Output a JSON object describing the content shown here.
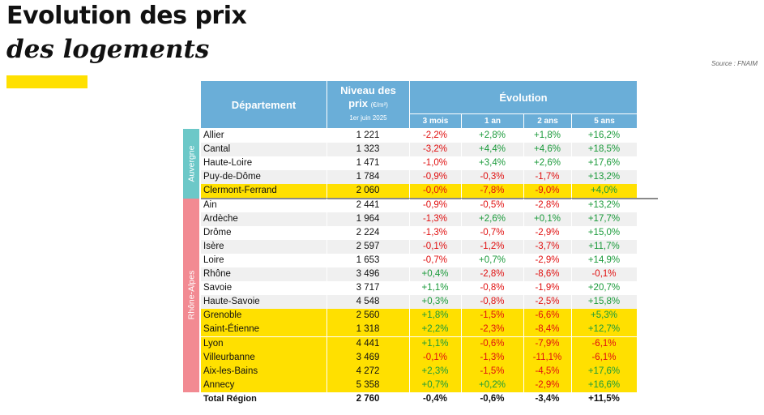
{
  "title_line1": "Evolution des prix",
  "title_line2": "des logements",
  "source": "Source : FNAIM",
  "header": {
    "departement": "Département",
    "niveau_line1": "Niveau des",
    "niveau_line2": "prix",
    "niveau_unit": "(€/m²)",
    "niveau_date": "1er juin 2025",
    "evolution": "Évolution",
    "periods": [
      "3 mois",
      "1 an",
      "2 ans",
      "5 ans"
    ]
  },
  "colors": {
    "header_blue": "#6aaed8",
    "auvergne_teal": "#6cc8c8",
    "rhone_alpes_pink": "#f28a92",
    "city_yellow": "#ffe000",
    "neg_red": "#e01010",
    "pos_green": "#1a9a3a"
  },
  "regions": [
    {
      "name": "Auvergne",
      "rows": [
        {
          "name": "Allier",
          "price": "1 221",
          "e": [
            "-2,2%",
            "+2,8%",
            "+1,8%",
            "+16,2%"
          ],
          "city": false
        },
        {
          "name": "Cantal",
          "price": "1 323",
          "e": [
            "-3,2%",
            "+4,4%",
            "+4,6%",
            "+18,5%"
          ],
          "city": false
        },
        {
          "name": "Haute-Loire",
          "price": "1 471",
          "e": [
            "-1,0%",
            "+3,4%",
            "+2,6%",
            "+17,6%"
          ],
          "city": false
        },
        {
          "name": "Puy-de-Dôme",
          "price": "1 784",
          "e": [
            "-0,9%",
            "-0,3%",
            "-1,7%",
            "+13,2%"
          ],
          "city": false
        },
        {
          "name": "Clermont-Ferrand",
          "price": "2 060",
          "e": [
            "-0,0%",
            "-7,8%",
            "-9,0%",
            "+4,0%"
          ],
          "city": true
        }
      ]
    },
    {
      "name": "Rhône-Alpes",
      "rows": [
        {
          "name": "Ain",
          "price": "2 441",
          "e": [
            "-0,9%",
            "-0,5%",
            "-2,8%",
            "+13,2%"
          ],
          "city": false
        },
        {
          "name": "Ardèche",
          "price": "1 964",
          "e": [
            "-1,3%",
            "+2,6%",
            "+0,1%",
            "+17,7%"
          ],
          "city": false
        },
        {
          "name": "Drôme",
          "price": "2 224",
          "e": [
            "-1,3%",
            "-0,7%",
            "-2,9%",
            "+15,0%"
          ],
          "city": false
        },
        {
          "name": "Isère",
          "price": "2 597",
          "e": [
            "-0,1%",
            "-1,2%",
            "-3,7%",
            "+11,7%"
          ],
          "city": false
        },
        {
          "name": "Loire",
          "price": "1 653",
          "e": [
            "-0,7%",
            "+0,7%",
            "-2,9%",
            "+14,9%"
          ],
          "city": false
        },
        {
          "name": "Rhône",
          "price": "3 496",
          "e": [
            "+0,4%",
            "-2,8%",
            "-8,6%",
            "-0,1%"
          ],
          "city": false
        },
        {
          "name": "Savoie",
          "price": "3 717",
          "e": [
            "+1,1%",
            "-0,8%",
            "-1,9%",
            "+20,7%"
          ],
          "city": false
        },
        {
          "name": "Haute-Savoie",
          "price": "4 548",
          "e": [
            "+0,3%",
            "-0,8%",
            "-2,5%",
            "+15,8%"
          ],
          "city": false
        },
        {
          "name": "Grenoble",
          "price": "2 560",
          "e": [
            "+1,8%",
            "-1,5%",
            "-6,6%",
            "+5,3%"
          ],
          "city": true
        },
        {
          "name": "Saint-Étienne",
          "price": "1 318",
          "e": [
            "+2,2%",
            "-2,3%",
            "-8,4%",
            "+12,7%"
          ],
          "city": true
        },
        {
          "name": "Lyon",
          "price": "4 441",
          "e": [
            "+1,1%",
            "-0,6%",
            "-7,9%",
            "-6,1%"
          ],
          "city": true
        },
        {
          "name": "Villeurbanne",
          "price": "3 469",
          "e": [
            "-0,1%",
            "-1,3%",
            "-11,1%",
            "-6,1%"
          ],
          "city": true
        },
        {
          "name": "Aix-les-Bains",
          "price": "4 272",
          "e": [
            "+2,3%",
            "-1,5%",
            "-4,5%",
            "+17,6%"
          ],
          "city": true
        },
        {
          "name": "Annecy",
          "price": "5 358",
          "e": [
            "+0,7%",
            "+0,2%",
            "-2,9%",
            "+16,6%"
          ],
          "city": true
        }
      ]
    }
  ],
  "total": {
    "name": "Total Région",
    "price": "2 760",
    "e": [
      "-0,4%",
      "-0,6%",
      "-3,4%",
      "+11,5%"
    ]
  }
}
